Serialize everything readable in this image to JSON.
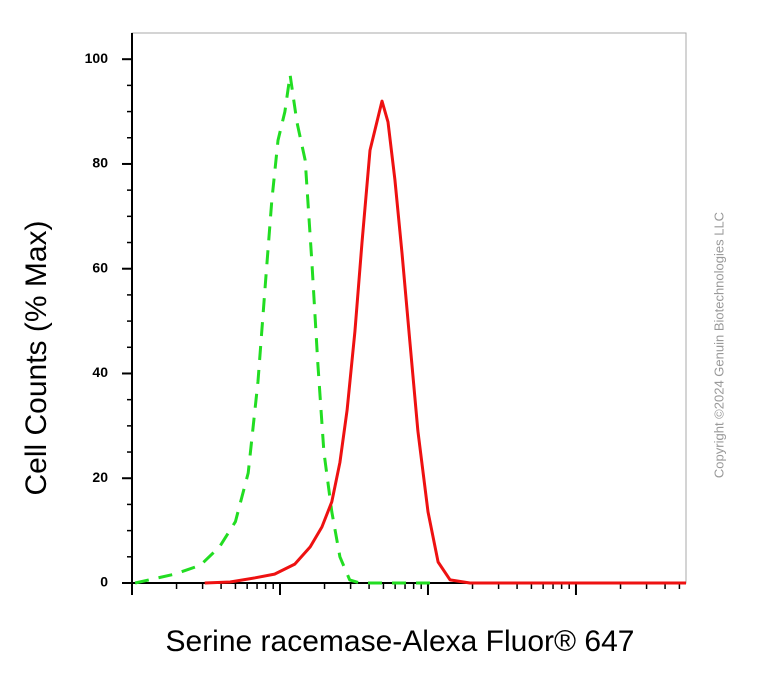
{
  "chart_data": {
    "type": "line",
    "y_label": "Cell Counts (% Max)",
    "x_label": "Serine racemase-Alexa Fluor® 647",
    "watermark": "Copyright ©2024 Genuin Biotechnologies LLC",
    "x_log": true,
    "xlim": [
      1,
      5540
    ],
    "xticks": [
      1,
      10,
      100,
      1000
    ],
    "ylim": [
      0,
      105
    ],
    "yticks": [
      0,
      20,
      40,
      60,
      80,
      100
    ],
    "series": [
      {
        "color": "#22dd22",
        "style": "dashed",
        "x": [
          1.05,
          1.3,
          1.95,
          2.9,
          3.9,
          5,
          6.1,
          7.1,
          8,
          8.8,
          9.7,
          10.8,
          11.7,
          13,
          14.8,
          16.4,
          18,
          19.8,
          22.4,
          25.4,
          29.6,
          34.7,
          120
        ],
        "values": [
          0,
          0.6,
          1.7,
          3.4,
          6.9,
          11.7,
          21,
          38.5,
          57.7,
          73,
          84.5,
          90,
          97,
          88,
          80.7,
          61.5,
          42,
          25,
          13.6,
          5,
          0.6,
          0,
          0
        ]
      },
      {
        "color": "#ee1111",
        "style": "solid",
        "x": [
          3.1,
          4.6,
          6.8,
          9.2,
          12.6,
          16,
          19.2,
          22.4,
          25.4,
          28.4,
          32.1,
          35.8,
          40.6,
          45.2,
          48.9,
          53.7,
          59.8,
          66.7,
          75.5,
          85.5,
          100,
          117,
          141,
          192,
          5540
        ],
        "values": [
          0,
          0.2,
          1,
          1.7,
          3.6,
          6.9,
          10.7,
          15.5,
          23,
          33,
          48,
          65,
          82.6,
          88,
          92,
          88,
          77,
          63,
          46,
          29,
          13.6,
          4,
          0.6,
          0,
          0
        ]
      }
    ]
  }
}
